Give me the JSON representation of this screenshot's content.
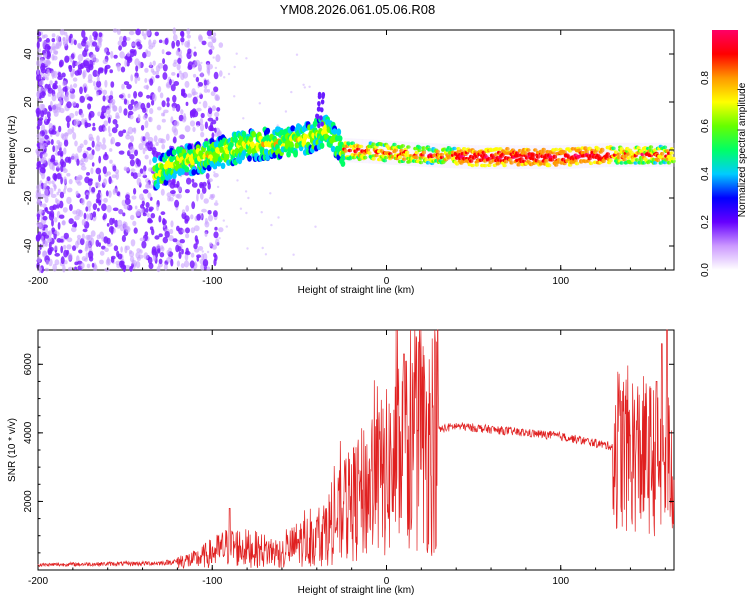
{
  "title": "YM08.2026.061.05.06.R08",
  "colors": {
    "snr_line": "#e02020",
    "axis": "#000000",
    "background": "#ffffff"
  },
  "chart_data": [
    {
      "type": "heatmap",
      "name": "spectrogram",
      "xlabel": "Height of straight line (km)",
      "ylabel": "Frequency (Hz)",
      "xlim": [
        -200,
        165
      ],
      "ylim": [
        -50,
        50
      ],
      "xticks": [
        -200,
        -100,
        0,
        100
      ],
      "yticks": [
        -40,
        -20,
        0,
        20,
        40
      ],
      "colorbar": {
        "label": "Normalized spectral amplitude",
        "range": [
          0,
          1
        ],
        "ticks": [
          "0.0",
          "0.2",
          "0.4",
          "0.6",
          "0.8"
        ],
        "colormap": [
          "#ffffff",
          "#cc99ff",
          "#6600ff",
          "#0000ff",
          "#00ccff",
          "#00ff66",
          "#66ff00",
          "#ffff00",
          "#ff9900",
          "#ff0000",
          "#ff0066"
        ]
      },
      "band": {
        "description": "Frequency ridge vs height",
        "x": [
          -133,
          -120,
          -100,
          -80,
          -60,
          -45,
          -35,
          -25,
          0,
          20,
          50,
          100,
          130,
          165
        ],
        "y": [
          -10,
          -5,
          -2,
          2,
          3,
          5,
          8,
          0,
          -1,
          -2,
          -3,
          -3,
          -2,
          -2
        ]
      }
    },
    {
      "type": "line",
      "name": "snr",
      "xlabel": "Height of straight line (km)",
      "ylabel": "SNR (10 * v/v)",
      "xlim": [
        -200,
        165
      ],
      "ylim": [
        0,
        7000
      ],
      "xticks": [
        -200,
        -100,
        0,
        100
      ],
      "yticks": [
        2000,
        4000,
        6000
      ],
      "envelope": {
        "x": [
          -200,
          -130,
          -110,
          -100,
          -90,
          -75,
          -60,
          -50,
          -40,
          -30,
          -20,
          -10,
          0,
          10,
          20,
          30,
          40,
          60,
          80,
          100,
          120,
          130,
          140,
          150,
          165
        ],
        "y": [
          150,
          200,
          300,
          500,
          700,
          600,
          500,
          800,
          900,
          1400,
          1900,
          2400,
          2800,
          3300,
          3700,
          4100,
          4200,
          4100,
          4000,
          3900,
          3700,
          3600,
          3500,
          3300,
          3000
        ]
      },
      "spikes": [
        {
          "x": 10,
          "y": 6300
        },
        {
          "x": -90,
          "y": 1800
        },
        {
          "x": 155,
          "y": 5500
        },
        {
          "x": 158,
          "y": 6600
        },
        {
          "x": 161,
          "y": 7000
        }
      ]
    }
  ]
}
